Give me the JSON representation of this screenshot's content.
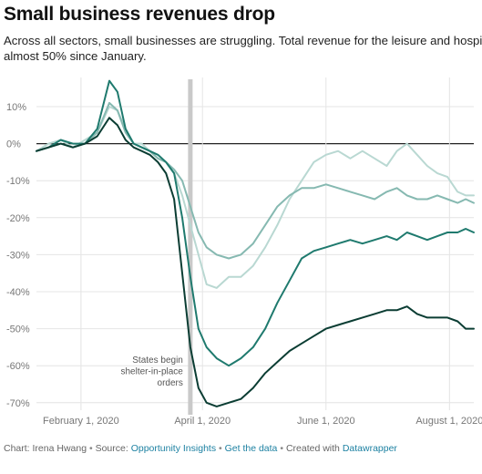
{
  "chart_data": {
    "type": "line",
    "title": "Small business revenues drop",
    "subtitle_lines": [
      "Across all sectors, small businesses are struggling. Total revenue for the leisure and hospi",
      "almost 50% since January."
    ],
    "xlabel": "",
    "ylabel": "",
    "x_range": [
      "2020-01-10",
      "2020-08-13"
    ],
    "ylim": [
      -72,
      18
    ],
    "y_ticks": [
      10,
      0,
      -10,
      -20,
      -30,
      -40,
      -50,
      -60,
      -70
    ],
    "y_tick_labels": [
      "10%",
      "0%",
      "-10%",
      "-20%",
      "-30%",
      "-40%",
      "-50%",
      "-60%",
      "-70%"
    ],
    "x_ticks": [
      {
        "date": "2020-02-01",
        "label": "February 1, 2020"
      },
      {
        "date": "2020-04-01",
        "label": "April 1, 2020"
      },
      {
        "date": "2020-06-01",
        "label": "June 1, 2020"
      },
      {
        "date": "2020-08-01",
        "label": "August 1, 2020"
      }
    ],
    "grid": true,
    "event_marker": {
      "date": "2020-03-26",
      "label_lines": [
        "States begin",
        "shelter-in-place",
        "orders"
      ]
    },
    "series": [
      {
        "color": "#b9d8d2",
        "points": [
          [
            "2020-01-10",
            -2
          ],
          [
            "2020-01-16",
            0
          ],
          [
            "2020-01-22",
            1
          ],
          [
            "2020-01-28",
            -1
          ],
          [
            "2020-02-03",
            1
          ],
          [
            "2020-02-09",
            3
          ],
          [
            "2020-02-15",
            10
          ],
          [
            "2020-02-19",
            9
          ],
          [
            "2020-02-23",
            4
          ],
          [
            "2020-02-27",
            0
          ],
          [
            "2020-03-02",
            0
          ],
          [
            "2020-03-06",
            -2
          ],
          [
            "2020-03-10",
            -4
          ],
          [
            "2020-03-14",
            -5
          ],
          [
            "2020-03-18",
            -8
          ],
          [
            "2020-03-22",
            -14
          ],
          [
            "2020-03-26",
            -22
          ],
          [
            "2020-03-30",
            -30
          ],
          [
            "2020-04-03",
            -38
          ],
          [
            "2020-04-08",
            -39
          ],
          [
            "2020-04-14",
            -36
          ],
          [
            "2020-04-20",
            -36
          ],
          [
            "2020-04-26",
            -33
          ],
          [
            "2020-05-02",
            -28
          ],
          [
            "2020-05-08",
            -22
          ],
          [
            "2020-05-14",
            -15
          ],
          [
            "2020-05-20",
            -10
          ],
          [
            "2020-05-26",
            -5
          ],
          [
            "2020-06-01",
            -3
          ],
          [
            "2020-06-07",
            -2
          ],
          [
            "2020-06-13",
            -4
          ],
          [
            "2020-06-19",
            -2
          ],
          [
            "2020-06-25",
            -4
          ],
          [
            "2020-07-01",
            -6
          ],
          [
            "2020-07-06",
            -2
          ],
          [
            "2020-07-11",
            0
          ],
          [
            "2020-07-16",
            -3
          ],
          [
            "2020-07-21",
            -6
          ],
          [
            "2020-07-26",
            -8
          ],
          [
            "2020-07-31",
            -9
          ],
          [
            "2020-08-05",
            -13
          ],
          [
            "2020-08-09",
            -14
          ],
          [
            "2020-08-13",
            -14
          ]
        ]
      },
      {
        "color": "#86b9b1",
        "points": [
          [
            "2020-01-10",
            -2
          ],
          [
            "2020-01-16",
            -1
          ],
          [
            "2020-01-22",
            0
          ],
          [
            "2020-01-28",
            -1
          ],
          [
            "2020-02-03",
            0
          ],
          [
            "2020-02-09",
            3
          ],
          [
            "2020-02-15",
            11
          ],
          [
            "2020-02-19",
            9
          ],
          [
            "2020-02-23",
            3
          ],
          [
            "2020-02-27",
            0
          ],
          [
            "2020-03-02",
            -1
          ],
          [
            "2020-03-06",
            -2
          ],
          [
            "2020-03-10",
            -4
          ],
          [
            "2020-03-14",
            -5
          ],
          [
            "2020-03-18",
            -7
          ],
          [
            "2020-03-22",
            -10
          ],
          [
            "2020-03-26",
            -17
          ],
          [
            "2020-03-30",
            -24
          ],
          [
            "2020-04-03",
            -28
          ],
          [
            "2020-04-08",
            -30
          ],
          [
            "2020-04-14",
            -31
          ],
          [
            "2020-04-20",
            -30
          ],
          [
            "2020-04-26",
            -27
          ],
          [
            "2020-05-02",
            -22
          ],
          [
            "2020-05-08",
            -17
          ],
          [
            "2020-05-14",
            -14
          ],
          [
            "2020-05-20",
            -12
          ],
          [
            "2020-05-26",
            -12
          ],
          [
            "2020-06-01",
            -11
          ],
          [
            "2020-06-07",
            -12
          ],
          [
            "2020-06-13",
            -13
          ],
          [
            "2020-06-19",
            -14
          ],
          [
            "2020-06-25",
            -15
          ],
          [
            "2020-07-01",
            -13
          ],
          [
            "2020-07-06",
            -12
          ],
          [
            "2020-07-11",
            -14
          ],
          [
            "2020-07-16",
            -15
          ],
          [
            "2020-07-21",
            -15
          ],
          [
            "2020-07-26",
            -14
          ],
          [
            "2020-07-31",
            -15
          ],
          [
            "2020-08-05",
            -16
          ],
          [
            "2020-08-09",
            -15
          ],
          [
            "2020-08-13",
            -16
          ]
        ]
      },
      {
        "color": "#1f7a6e",
        "points": [
          [
            "2020-01-10",
            -2
          ],
          [
            "2020-01-16",
            -1
          ],
          [
            "2020-01-22",
            1
          ],
          [
            "2020-01-28",
            0
          ],
          [
            "2020-02-03",
            0
          ],
          [
            "2020-02-09",
            4
          ],
          [
            "2020-02-15",
            17
          ],
          [
            "2020-02-19",
            14
          ],
          [
            "2020-02-23",
            4
          ],
          [
            "2020-02-27",
            0
          ],
          [
            "2020-03-02",
            -1
          ],
          [
            "2020-03-06",
            -2
          ],
          [
            "2020-03-10",
            -3
          ],
          [
            "2020-03-14",
            -5
          ],
          [
            "2020-03-18",
            -8
          ],
          [
            "2020-03-22",
            -20
          ],
          [
            "2020-03-26",
            -36
          ],
          [
            "2020-03-30",
            -50
          ],
          [
            "2020-04-03",
            -55
          ],
          [
            "2020-04-08",
            -58
          ],
          [
            "2020-04-14",
            -60
          ],
          [
            "2020-04-20",
            -58
          ],
          [
            "2020-04-26",
            -55
          ],
          [
            "2020-05-02",
            -50
          ],
          [
            "2020-05-08",
            -43
          ],
          [
            "2020-05-14",
            -37
          ],
          [
            "2020-05-20",
            -31
          ],
          [
            "2020-05-26",
            -29
          ],
          [
            "2020-06-01",
            -28
          ],
          [
            "2020-06-07",
            -27
          ],
          [
            "2020-06-13",
            -26
          ],
          [
            "2020-06-19",
            -27
          ],
          [
            "2020-06-25",
            -26
          ],
          [
            "2020-07-01",
            -25
          ],
          [
            "2020-07-06",
            -26
          ],
          [
            "2020-07-11",
            -24
          ],
          [
            "2020-07-16",
            -25
          ],
          [
            "2020-07-21",
            -26
          ],
          [
            "2020-07-26",
            -25
          ],
          [
            "2020-07-31",
            -24
          ],
          [
            "2020-08-05",
            -24
          ],
          [
            "2020-08-09",
            -23
          ],
          [
            "2020-08-13",
            -24
          ]
        ]
      },
      {
        "color": "#0b3d33",
        "points": [
          [
            "2020-01-10",
            -2
          ],
          [
            "2020-01-16",
            -1
          ],
          [
            "2020-01-22",
            0
          ],
          [
            "2020-01-28",
            -1
          ],
          [
            "2020-02-03",
            0
          ],
          [
            "2020-02-09",
            2
          ],
          [
            "2020-02-15",
            7
          ],
          [
            "2020-02-19",
            5
          ],
          [
            "2020-02-23",
            1
          ],
          [
            "2020-02-27",
            -1
          ],
          [
            "2020-03-02",
            -2
          ],
          [
            "2020-03-06",
            -3
          ],
          [
            "2020-03-10",
            -5
          ],
          [
            "2020-03-14",
            -8
          ],
          [
            "2020-03-18",
            -15
          ],
          [
            "2020-03-22",
            -35
          ],
          [
            "2020-03-26",
            -55
          ],
          [
            "2020-03-30",
            -66
          ],
          [
            "2020-04-03",
            -70
          ],
          [
            "2020-04-08",
            -71
          ],
          [
            "2020-04-14",
            -70
          ],
          [
            "2020-04-20",
            -69
          ],
          [
            "2020-04-26",
            -66
          ],
          [
            "2020-05-02",
            -62
          ],
          [
            "2020-05-08",
            -59
          ],
          [
            "2020-05-14",
            -56
          ],
          [
            "2020-05-20",
            -54
          ],
          [
            "2020-05-26",
            -52
          ],
          [
            "2020-06-01",
            -50
          ],
          [
            "2020-06-07",
            -49
          ],
          [
            "2020-06-13",
            -48
          ],
          [
            "2020-06-19",
            -47
          ],
          [
            "2020-06-25",
            -46
          ],
          [
            "2020-07-01",
            -45
          ],
          [
            "2020-07-06",
            -45
          ],
          [
            "2020-07-11",
            -44
          ],
          [
            "2020-07-16",
            -46
          ],
          [
            "2020-07-21",
            -47
          ],
          [
            "2020-07-26",
            -47
          ],
          [
            "2020-07-31",
            -47
          ],
          [
            "2020-08-05",
            -48
          ],
          [
            "2020-08-09",
            -50
          ],
          [
            "2020-08-13",
            -50
          ]
        ]
      }
    ]
  },
  "footer": {
    "chart_prefix": "Chart: Irena Hwang",
    "separator": "•",
    "source_prefix": "Source:",
    "source_link": "Opportunity Insights",
    "data_link": "Get the data",
    "created_prefix": "Created with",
    "created_link": "Datawrapper"
  }
}
